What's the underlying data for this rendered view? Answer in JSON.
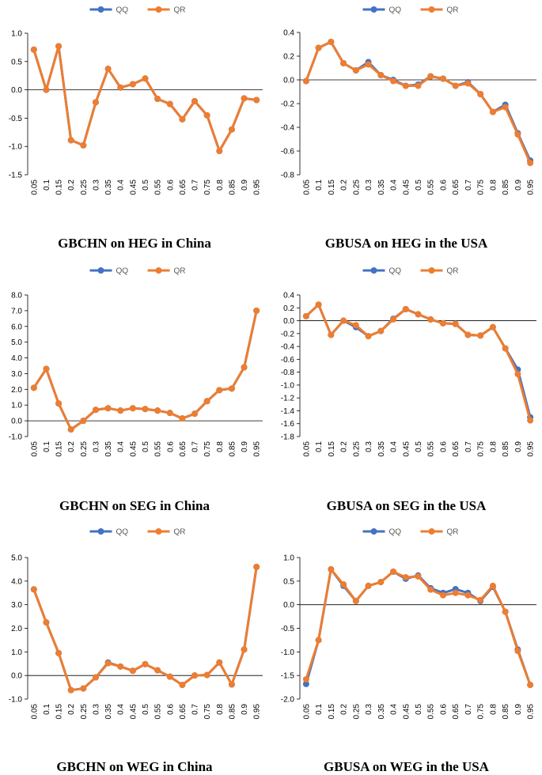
{
  "colors": {
    "QQ": "#4472C4",
    "QR": "#ED7D31"
  },
  "legend": [
    "QQ",
    "QR"
  ],
  "chart_data": [
    {
      "type": "line",
      "title": "GBCHN on HEG in China",
      "x": [
        "0.05",
        "0.1",
        "0.15",
        "0.2",
        "0.25",
        "0.3",
        "0.35",
        "0.4",
        "0.45",
        "0.5",
        "0.55",
        "0.6",
        "0.65",
        "0.7",
        "0.75",
        "0.8",
        "0.85",
        "0.9",
        "0.95"
      ],
      "ylim": [
        -1.5,
        1.0
      ],
      "yticks": [
        "1.0",
        "0.5",
        "0.0",
        "-0.5",
        "-1.0",
        "-1.5"
      ],
      "series": [
        {
          "name": "QQ",
          "values": [
            0.71,
            0.0,
            0.77,
            -0.89,
            -0.98,
            -0.22,
            0.37,
            0.04,
            0.1,
            0.2,
            -0.16,
            -0.25,
            -0.52,
            -0.2,
            -0.45,
            -1.08,
            -0.7,
            -0.15,
            -0.18
          ]
        },
        {
          "name": "QR",
          "values": [
            0.71,
            0.0,
            0.77,
            -0.89,
            -0.98,
            -0.22,
            0.37,
            0.04,
            0.1,
            0.2,
            -0.16,
            -0.25,
            -0.52,
            -0.2,
            -0.45,
            -1.08,
            -0.7,
            -0.15,
            -0.18
          ]
        }
      ]
    },
    {
      "type": "line",
      "title": "GBUSA on HEG in the USA",
      "x": [
        "0.05",
        "0.1",
        "0.15",
        "0.2",
        "0.25",
        "0.3",
        "0.35",
        "0.4",
        "0.45",
        "0.5",
        "0.55",
        "0.6",
        "0.65",
        "0.7",
        "0.75",
        "0.8",
        "0.85",
        "0.9",
        "0.95"
      ],
      "ylim": [
        -0.8,
        0.4
      ],
      "yticks": [
        "0.4",
        "0.2",
        "0.0",
        "-0.2",
        "-0.4",
        "-0.6",
        "-0.8"
      ],
      "series": [
        {
          "name": "QQ",
          "values": [
            -0.01,
            0.27,
            0.32,
            0.14,
            0.08,
            0.15,
            0.04,
            0.0,
            -0.05,
            -0.04,
            0.03,
            0.01,
            -0.05,
            -0.02,
            -0.12,
            -0.27,
            -0.21,
            -0.45,
            -0.68
          ]
        },
        {
          "name": "QR",
          "values": [
            -0.01,
            0.27,
            0.32,
            0.14,
            0.08,
            0.13,
            0.04,
            -0.01,
            -0.05,
            -0.05,
            0.03,
            0.01,
            -0.05,
            -0.03,
            -0.12,
            -0.27,
            -0.23,
            -0.46,
            -0.7
          ]
        }
      ]
    },
    {
      "type": "line",
      "title": "GBCHN on SEG in China",
      "x": [
        "0.05",
        "0.1",
        "0.15",
        "0.2",
        "0.25",
        "0.3",
        "0.35",
        "0.4",
        "0.45",
        "0.5",
        "0.55",
        "0.6",
        "0.65",
        "0.7",
        "0.75",
        "0.8",
        "0.85",
        "0.9",
        "0.95"
      ],
      "ylim": [
        -1.0,
        8.0
      ],
      "yticks": [
        "8.0",
        "7.0",
        "6.0",
        "5.0",
        "4.0",
        "3.0",
        "2.0",
        "1.0",
        "0.0",
        "-1.0"
      ],
      "series": [
        {
          "name": "QQ",
          "values": [
            2.1,
            3.3,
            1.1,
            -0.55,
            0.0,
            0.7,
            0.8,
            0.65,
            0.8,
            0.75,
            0.65,
            0.5,
            0.15,
            0.45,
            1.25,
            1.95,
            2.05,
            3.4,
            7.0
          ]
        },
        {
          "name": "QR",
          "values": [
            2.1,
            3.3,
            1.1,
            -0.55,
            0.0,
            0.7,
            0.8,
            0.65,
            0.8,
            0.75,
            0.65,
            0.5,
            0.15,
            0.45,
            1.25,
            1.95,
            2.05,
            3.4,
            7.0
          ]
        }
      ]
    },
    {
      "type": "line",
      "title": "GBUSA on SEG in the USA",
      "x": [
        "0.05",
        "0.1",
        "0.15",
        "0.2",
        "0.25",
        "0.3",
        "0.35",
        "0.4",
        "0.45",
        "0.5",
        "0.55",
        "0.6",
        "0.65",
        "0.7",
        "0.75",
        "0.8",
        "0.85",
        "0.9",
        "0.95"
      ],
      "ylim": [
        -1.8,
        0.4
      ],
      "yticks": [
        "0.4",
        "0.2",
        "0.0",
        "-0.2",
        "-0.4",
        "-0.6",
        "-0.8",
        "-1.0",
        "-1.2",
        "-1.4",
        "-1.6",
        "-1.8"
      ],
      "series": [
        {
          "name": "QQ",
          "values": [
            0.07,
            0.25,
            -0.22,
            0.0,
            -0.1,
            -0.24,
            -0.16,
            0.03,
            0.18,
            0.1,
            0.02,
            -0.04,
            -0.05,
            -0.22,
            -0.23,
            -0.1,
            -0.43,
            -0.76,
            -1.5
          ]
        },
        {
          "name": "QR",
          "values": [
            0.07,
            0.25,
            -0.22,
            0.0,
            -0.07,
            -0.24,
            -0.16,
            0.02,
            0.18,
            0.1,
            0.02,
            -0.04,
            -0.05,
            -0.22,
            -0.23,
            -0.1,
            -0.43,
            -0.83,
            -1.55
          ]
        }
      ]
    },
    {
      "type": "line",
      "title": "GBCHN on WEG in China",
      "x": [
        "0.05",
        "0.1",
        "0.15",
        "0.2",
        "0.25",
        "0.3",
        "0.35",
        "0.4",
        "0.45",
        "0.5",
        "0.55",
        "0.6",
        "0.65",
        "0.7",
        "0.75",
        "0.8",
        "0.85",
        "0.9",
        "0.95"
      ],
      "ylim": [
        -1.0,
        5.0
      ],
      "yticks": [
        "5.0",
        "4.0",
        "3.0",
        "2.0",
        "1.0",
        "0.0",
        "-1.0"
      ],
      "series": [
        {
          "name": "QQ",
          "values": [
            3.65,
            2.25,
            0.95,
            -0.62,
            -0.55,
            -0.08,
            0.55,
            0.38,
            0.2,
            0.48,
            0.22,
            -0.05,
            -0.4,
            0.0,
            0.02,
            0.55,
            -0.38,
            1.1,
            4.6
          ]
        },
        {
          "name": "QR",
          "values": [
            3.65,
            2.25,
            0.95,
            -0.62,
            -0.55,
            -0.08,
            0.52,
            0.38,
            0.2,
            0.48,
            0.22,
            -0.05,
            -0.4,
            0.0,
            0.02,
            0.55,
            -0.38,
            1.1,
            4.6
          ]
        }
      ]
    },
    {
      "type": "line",
      "title": "GBUSA on WEG in the USA",
      "x": [
        "0.05",
        "0.1",
        "0.15",
        "0.2",
        "0.25",
        "0.3",
        "0.35",
        "0.4",
        "0.45",
        "0.5",
        "0.55",
        "0.6",
        "0.65",
        "0.7",
        "0.75",
        "0.8",
        "0.85",
        "0.9",
        "0.95"
      ],
      "ylim": [
        -2.0,
        1.0
      ],
      "yticks": [
        "1.0",
        "0.5",
        "0.0",
        "-0.5",
        "-1.0",
        "-1.5",
        "-2.0"
      ],
      "series": [
        {
          "name": "QQ",
          "values": [
            -1.68,
            -0.75,
            0.75,
            0.4,
            0.08,
            0.4,
            0.48,
            0.7,
            0.55,
            0.62,
            0.35,
            0.25,
            0.33,
            0.25,
            0.08,
            0.38,
            -0.15,
            -0.95,
            -1.7
          ]
        },
        {
          "name": "QR",
          "values": [
            -1.58,
            -0.75,
            0.75,
            0.43,
            0.08,
            0.4,
            0.48,
            0.7,
            0.58,
            0.6,
            0.32,
            0.2,
            0.25,
            0.2,
            0.1,
            0.4,
            -0.15,
            -0.98,
            -1.7
          ]
        }
      ]
    }
  ]
}
